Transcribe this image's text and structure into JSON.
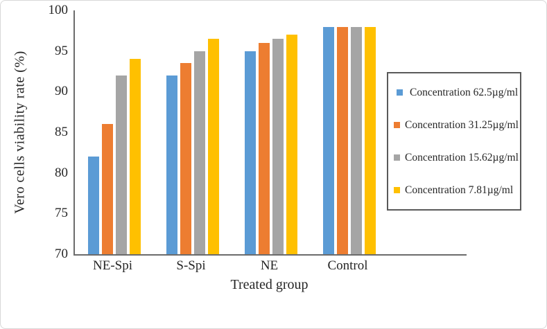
{
  "chart_data": {
    "type": "bar",
    "title": "",
    "xlabel": "Treated group",
    "ylabel": "Vero cells viability rate  (%)",
    "categories": [
      "NE-Spi",
      "S-Spi",
      "NE",
      "Control"
    ],
    "series": [
      {
        "name": "Concentration 62.5µg/ml",
        "color": "#5B9BD5",
        "values": [
          82,
          92,
          95,
          98
        ]
      },
      {
        "name": "Concentration 31.25µg/ml",
        "color": "#ED7D31",
        "values": [
          86,
          93.5,
          96,
          98
        ]
      },
      {
        "name": "Concentration 15.62µg/ml",
        "color": "#A5A5A5",
        "values": [
          92,
          95,
          96.5,
          98
        ]
      },
      {
        "name": "Concentration 7.81µg/ml",
        "color": "#FFC000",
        "values": [
          94,
          96.5,
          97,
          98
        ]
      }
    ],
    "ylim": [
      70,
      100
    ],
    "yticks": [
      70,
      75,
      80,
      85,
      90,
      95,
      100
    ],
    "grid": false,
    "legend_position": "right",
    "category_slots": 5,
    "axis_color": "#6b6b6b",
    "legend_border_color": "#595959"
  }
}
